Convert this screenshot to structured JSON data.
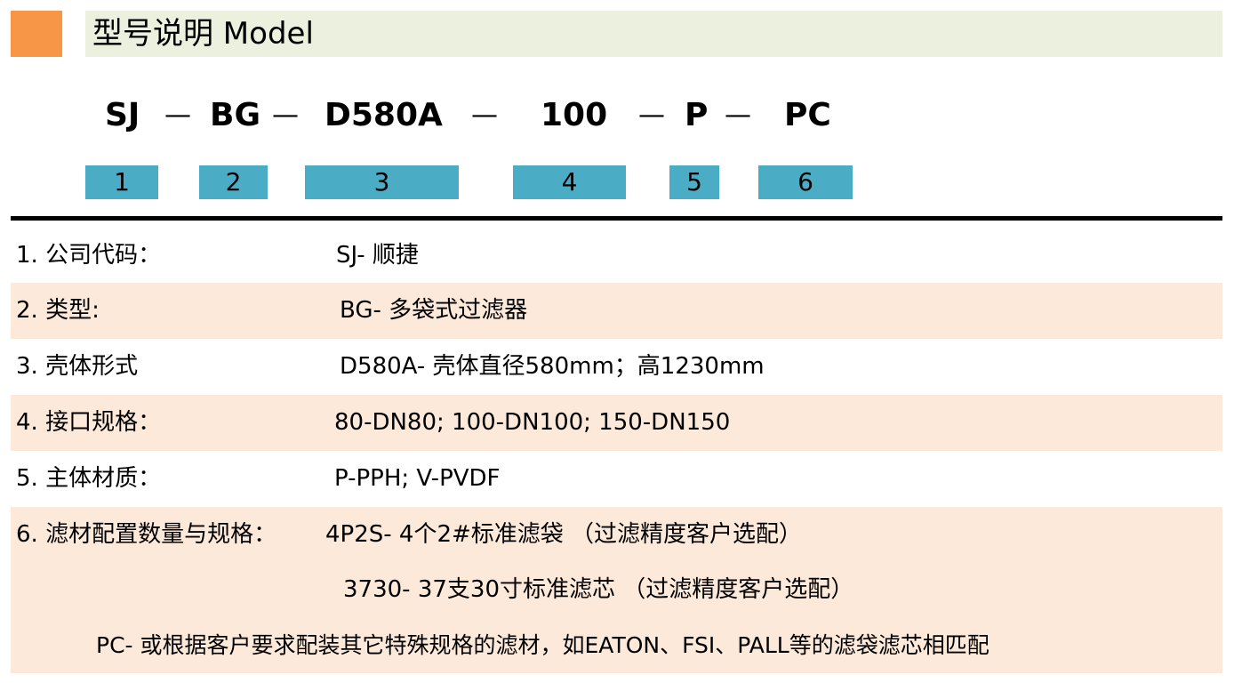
{
  "header": {
    "title": "型号说明 Model",
    "accent": "#f79646",
    "bar_color": "#ebf1de"
  },
  "code": {
    "parts": [
      "SJ",
      "BG",
      "D580A",
      "100",
      "P",
      "PC"
    ],
    "separator": "—"
  },
  "index_boxes": {
    "labels": [
      "1",
      "2",
      "3",
      "4",
      "5",
      "6"
    ],
    "color": "#4bacc6"
  },
  "rows": [
    {
      "label": "1. 公司代码：",
      "value": "SJ-  顺捷"
    },
    {
      "label": "2. 类型:",
      "value": "BG- 多袋式过滤器"
    },
    {
      "label": "3. 壳体形式",
      "value": "D580A- 壳体直径580mm；高1230mm"
    },
    {
      "label": "4. 接口规格：",
      "value": "80-DN80;  100-DN100;   150-DN150"
    },
    {
      "label": "5. 主体材质：",
      "value": "P-PPH;  V-PVDF"
    },
    {
      "label": "6. 滤材配置数量与规格：",
      "value": "4P2S- 4个2#标准滤袋 （过滤精度客户选配）",
      "extra": [
        "3730- 37支30寸标准滤芯 （过滤精度客户选配）",
        "PC- 或根据客户要求配装其它特殊规格的滤材，如EATON、FSI、PALL等的滤袋滤芯相匹配"
      ]
    }
  ],
  "row_shading": "#fde9d9"
}
